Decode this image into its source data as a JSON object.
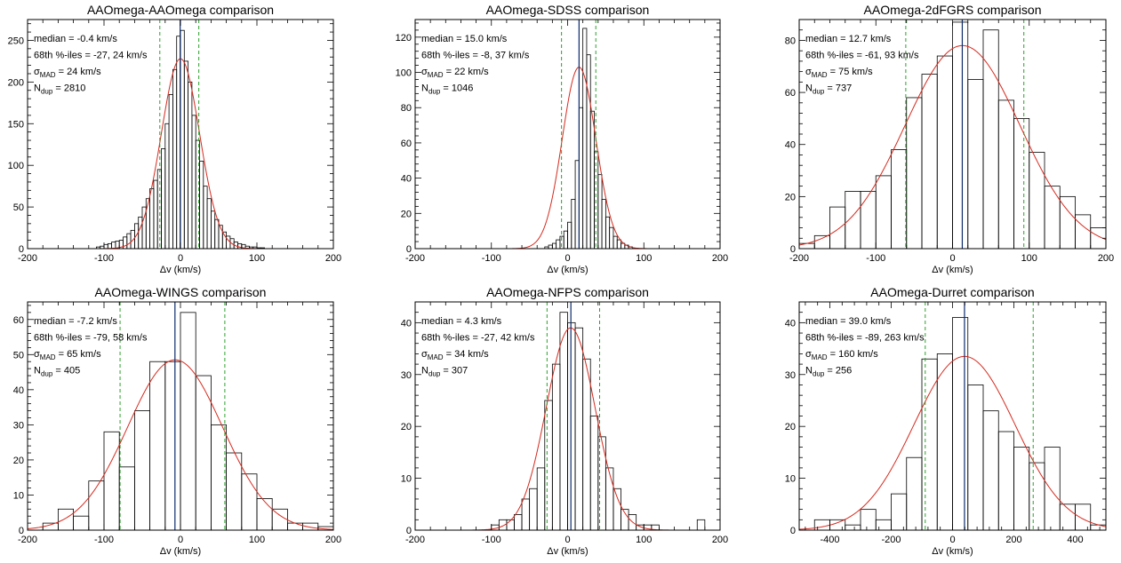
{
  "chart_data": [
    {
      "type": "histogram",
      "title": "AAOmega-AAOmega comparison",
      "xlabel": "Δv (km/s)",
      "xlim": [
        -200,
        200
      ],
      "ylim": [
        0,
        275
      ],
      "xticks": [
        -200,
        -100,
        0,
        100,
        200
      ],
      "yticks": [
        0,
        50,
        100,
        150,
        200,
        250
      ],
      "bin_width": 5,
      "bins": [
        [
          -110,
          2
        ],
        [
          -105,
          3
        ],
        [
          -100,
          5
        ],
        [
          -95,
          6
        ],
        [
          -90,
          8
        ],
        [
          -85,
          9
        ],
        [
          -80,
          10
        ],
        [
          -75,
          14
        ],
        [
          -70,
          18
        ],
        [
          -65,
          22
        ],
        [
          -60,
          30
        ],
        [
          -55,
          38
        ],
        [
          -50,
          50
        ],
        [
          -45,
          60
        ],
        [
          -40,
          72
        ],
        [
          -35,
          82
        ],
        [
          -30,
          95
        ],
        [
          -25,
          120
        ],
        [
          -20,
          150
        ],
        [
          -15,
          185
        ],
        [
          -10,
          215
        ],
        [
          -5,
          255
        ],
        [
          0,
          262
        ],
        [
          5,
          225
        ],
        [
          10,
          200
        ],
        [
          15,
          160
        ],
        [
          20,
          130
        ],
        [
          25,
          105
        ],
        [
          30,
          75
        ],
        [
          35,
          60
        ],
        [
          40,
          45
        ],
        [
          45,
          35
        ],
        [
          50,
          28
        ],
        [
          55,
          20
        ],
        [
          60,
          15
        ],
        [
          65,
          12
        ],
        [
          70,
          8
        ],
        [
          75,
          6
        ],
        [
          80,
          5
        ],
        [
          85,
          3
        ],
        [
          90,
          2
        ],
        [
          95,
          2
        ],
        [
          100,
          1
        ],
        [
          105,
          1
        ]
      ],
      "gaussian": {
        "amplitude": 228,
        "mean": 0,
        "sigma": 25
      },
      "median_line": -0.4,
      "percentile_lines": [
        -27,
        24
      ],
      "stats": [
        {
          "text": "median  = -0.4 km/s"
        },
        {
          "text": "68th %-iles = -27, 24 km/s"
        },
        {
          "text": "σ",
          "sub": "MAD",
          "rest": " = 24 km/s"
        },
        {
          "text": "N",
          "sub": "dup",
          "rest": " = 2810"
        }
      ]
    },
    {
      "type": "histogram",
      "title": "AAOmega-SDSS comparison",
      "xlabel": "Δv (km/s)",
      "xlim": [
        -200,
        200
      ],
      "ylim": [
        0,
        130
      ],
      "xticks": [
        -200,
        -100,
        0,
        100,
        200
      ],
      "yticks": [
        0,
        20,
        40,
        60,
        80,
        100,
        120
      ],
      "bin_width": 5,
      "bins": [
        [
          -30,
          1
        ],
        [
          -25,
          2
        ],
        [
          -20,
          3
        ],
        [
          -15,
          5
        ],
        [
          -10,
          7
        ],
        [
          -5,
          10
        ],
        [
          0,
          15
        ],
        [
          5,
          28
        ],
        [
          10,
          50
        ],
        [
          15,
          80
        ],
        [
          20,
          125
        ],
        [
          25,
          110
        ],
        [
          30,
          78
        ],
        [
          35,
          55
        ],
        [
          40,
          42
        ],
        [
          45,
          28
        ],
        [
          50,
          18
        ],
        [
          55,
          12
        ],
        [
          60,
          7
        ],
        [
          65,
          5
        ],
        [
          70,
          3
        ],
        [
          75,
          2
        ],
        [
          80,
          1
        ]
      ],
      "gaussian": {
        "amplitude": 103,
        "mean": 15,
        "sigma": 22
      },
      "median_line": 15.0,
      "percentile_lines": [
        -8,
        37
      ],
      "stats": [
        {
          "text": "median = 15.0 km/s"
        },
        {
          "text": "68th %-iles = -8, 37 km/s"
        },
        {
          "text": "σ",
          "sub": "MAD",
          "rest": " = 22 km/s"
        },
        {
          "text": "N",
          "sub": "dup",
          "rest": " = 1046"
        }
      ]
    },
    {
      "type": "histogram",
      "title": "AAOmega-2dFGRS comparison",
      "xlabel": "Δv (km/s)",
      "xlim": [
        -200,
        200
      ],
      "ylim": [
        0,
        88
      ],
      "xticks": [
        -200,
        -100,
        0,
        100,
        200
      ],
      "yticks": [
        0,
        20,
        40,
        60,
        80
      ],
      "bin_width": 20,
      "bins": [
        [
          -200,
          2
        ],
        [
          -180,
          5
        ],
        [
          -160,
          16
        ],
        [
          -140,
          22
        ],
        [
          -120,
          22
        ],
        [
          -100,
          28
        ],
        [
          -80,
          38
        ],
        [
          -60,
          58
        ],
        [
          -40,
          67
        ],
        [
          -20,
          74
        ],
        [
          0,
          87
        ],
        [
          20,
          65
        ],
        [
          40,
          84
        ],
        [
          60,
          57
        ],
        [
          80,
          50
        ],
        [
          100,
          37
        ],
        [
          120,
          24
        ],
        [
          140,
          20
        ],
        [
          160,
          13
        ],
        [
          180,
          8
        ]
      ],
      "gaussian": {
        "amplitude": 78,
        "mean": 13,
        "sigma": 75
      },
      "median_line": 12.7,
      "percentile_lines": [
        -61,
        93
      ],
      "stats": [
        {
          "text": "median = 12.7 km/s"
        },
        {
          "text": "68th %-iles = -61, 93 km/s"
        },
        {
          "text": "σ",
          "sub": "MAD",
          "rest": " = 75 km/s"
        },
        {
          "text": "N",
          "sub": "dup",
          "rest": " = 737"
        }
      ]
    },
    {
      "type": "histogram",
      "title": "AAOmega-WINGS comparison",
      "xlabel": "Δv (km/s)",
      "xlim": [
        -200,
        200
      ],
      "ylim": [
        0,
        65
      ],
      "xticks": [
        -200,
        -100,
        0,
        100,
        200
      ],
      "yticks": [
        0,
        10,
        20,
        30,
        40,
        50,
        60
      ],
      "bin_width": 20,
      "bins": [
        [
          -180,
          2
        ],
        [
          -160,
          6
        ],
        [
          -140,
          4
        ],
        [
          -120,
          14
        ],
        [
          -100,
          28
        ],
        [
          -80,
          18
        ],
        [
          -60,
          34
        ],
        [
          -40,
          48
        ],
        [
          -20,
          48
        ],
        [
          0,
          62
        ],
        [
          20,
          44
        ],
        [
          40,
          30
        ],
        [
          60,
          22
        ],
        [
          80,
          16
        ],
        [
          100,
          9
        ],
        [
          120,
          6
        ],
        [
          140,
          2
        ],
        [
          160,
          2
        ],
        [
          180,
          1
        ]
      ],
      "gaussian": {
        "amplitude": 48.5,
        "mean": -7,
        "sigma": 62
      },
      "median_line": -7.2,
      "percentile_lines": [
        -79,
        58
      ],
      "stats": [
        {
          "text": "median = -7.2 km/s"
        },
        {
          "text": "68th %-iles = -79, 58 km/s"
        },
        {
          "text": "σ",
          "sub": "MAD",
          "rest": " = 65 km/s"
        },
        {
          "text": "N",
          "sub": "dup",
          "rest": " = 405"
        }
      ]
    },
    {
      "type": "histogram",
      "title": "AAOmega-NFPS comparison",
      "xlabel": "Δv (km/s)",
      "xlim": [
        -200,
        200
      ],
      "ylim": [
        0,
        44
      ],
      "xticks": [
        -200,
        -100,
        0,
        100,
        200
      ],
      "yticks": [
        0,
        10,
        20,
        30,
        40
      ],
      "bin_width": 10,
      "bins": [
        [
          -100,
          1
        ],
        [
          -90,
          2
        ],
        [
          -80,
          2
        ],
        [
          -70,
          3
        ],
        [
          -60,
          6
        ],
        [
          -50,
          8
        ],
        [
          -40,
          12
        ],
        [
          -30,
          25
        ],
        [
          -20,
          32
        ],
        [
          -10,
          42
        ],
        [
          0,
          40
        ],
        [
          10,
          39
        ],
        [
          20,
          33
        ],
        [
          30,
          22
        ],
        [
          40,
          18
        ],
        [
          50,
          12
        ],
        [
          60,
          8
        ],
        [
          70,
          4
        ],
        [
          80,
          3
        ],
        [
          90,
          1
        ],
        [
          100,
          1
        ],
        [
          110,
          1
        ],
        [
          170,
          2
        ]
      ],
      "gaussian": {
        "amplitude": 39,
        "mean": 4,
        "sigma": 32
      },
      "median_line": 4.3,
      "percentile_lines": [
        -27,
        42
      ],
      "stats": [
        {
          "text": "median = 4.3 km/s"
        },
        {
          "text": "68th %-iles = -27, 42 km/s"
        },
        {
          "text": "σ",
          "sub": "MAD",
          "rest": " = 34 km/s"
        },
        {
          "text": "N",
          "sub": "dup",
          "rest": " = 307"
        }
      ]
    },
    {
      "type": "histogram",
      "title": "AAOmega-Durret comparison",
      "xlabel": "Δv (km/s)",
      "xlim": [
        -500,
        500
      ],
      "ylim": [
        0,
        44
      ],
      "xticks": [
        -400,
        -200,
        0,
        200,
        400
      ],
      "yticks": [
        0,
        10,
        20,
        30,
        40
      ],
      "bin_width": 50,
      "bins": [
        [
          -450,
          2
        ],
        [
          -400,
          2
        ],
        [
          -350,
          1
        ],
        [
          -300,
          4
        ],
        [
          -250,
          2
        ],
        [
          -200,
          7
        ],
        [
          -150,
          14
        ],
        [
          -100,
          33
        ],
        [
          -50,
          34
        ],
        [
          0,
          41
        ],
        [
          50,
          28
        ],
        [
          100,
          23
        ],
        [
          150,
          19
        ],
        [
          200,
          16
        ],
        [
          250,
          13
        ],
        [
          300,
          16
        ],
        [
          350,
          5
        ],
        [
          400,
          5
        ],
        [
          450,
          1
        ]
      ],
      "gaussian": {
        "amplitude": 33.5,
        "mean": 39,
        "sigma": 165
      },
      "median_line": 39.0,
      "percentile_lines": [
        -89,
        263
      ],
      "stats": [
        {
          "text": "median = 39.0 km/s"
        },
        {
          "text": "68th %-iles = -89, 263 km/s"
        },
        {
          "text": "σ",
          "sub": "MAD",
          "rest": " = 160 km/s"
        },
        {
          "text": "N",
          "sub": "dup",
          "rest": " = 256"
        }
      ]
    }
  ],
  "colors": {
    "histogram": "#000000",
    "gaussian": "#d62a1e",
    "median_line": "#0b2a6b",
    "percentile_lines": "#2ca02c"
  }
}
